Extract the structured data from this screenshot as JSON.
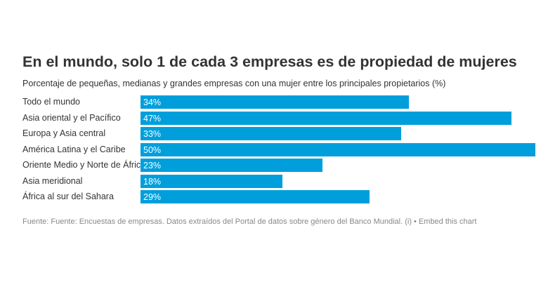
{
  "chart_data": {
    "type": "bar",
    "orientation": "horizontal",
    "title": "En el mundo, solo 1 de cada 3 empresas es de propiedad de mujeres",
    "subtitle": "Porcentaje de pequeñas, medianas y grandes empresas con una mujer entre los principales propietarios (%)",
    "categories": [
      "Todo el mundo",
      "Asia oriental y el Pacífico",
      "Europa y Asia central",
      "América Latina y el Caribe",
      "Oriente Medio y Norte de África",
      "Asia meridional",
      "África al sur del Sahara"
    ],
    "values": [
      34,
      47,
      33,
      50,
      23,
      18,
      29
    ],
    "value_labels": [
      "34%",
      "47%",
      "33%",
      "50%",
      "23%",
      "18%",
      "29%"
    ],
    "xlim": [
      0,
      50
    ],
    "grid": false,
    "bar_color": "#009fdb"
  },
  "source": "Fuente: Fuente: Encuestas de empresas. Datos extraídos del Portal de datos sobre género del Banco Mundial. (i) • Embed this chart"
}
